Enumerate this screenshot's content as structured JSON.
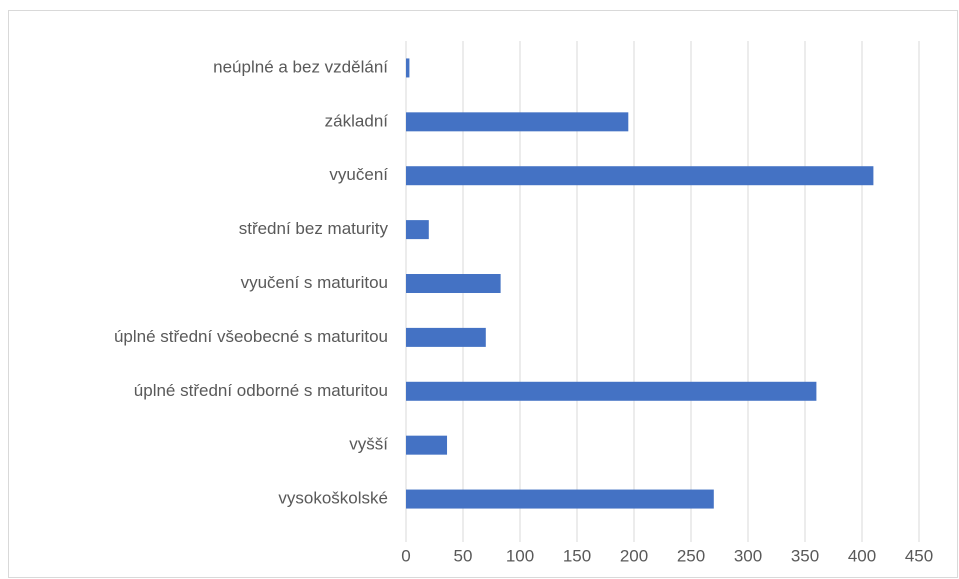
{
  "chart_data": {
    "type": "barh",
    "categories": [
      "neúplné a bez vzdělání",
      "základní",
      "vyučení",
      "střední bez maturity",
      "vyučení s maturitou",
      "úplné střední všeobecné s maturitou",
      "úplné střední odborné s maturitou",
      "vyšší",
      "vysokoškolské"
    ],
    "values": [
      3,
      195,
      410,
      20,
      83,
      70,
      360,
      36,
      270
    ],
    "color": "#4472c4",
    "xlim": [
      0,
      450
    ],
    "xticks": [
      0,
      50,
      100,
      150,
      200,
      250,
      300,
      350,
      400,
      450
    ],
    "grid": true
  }
}
